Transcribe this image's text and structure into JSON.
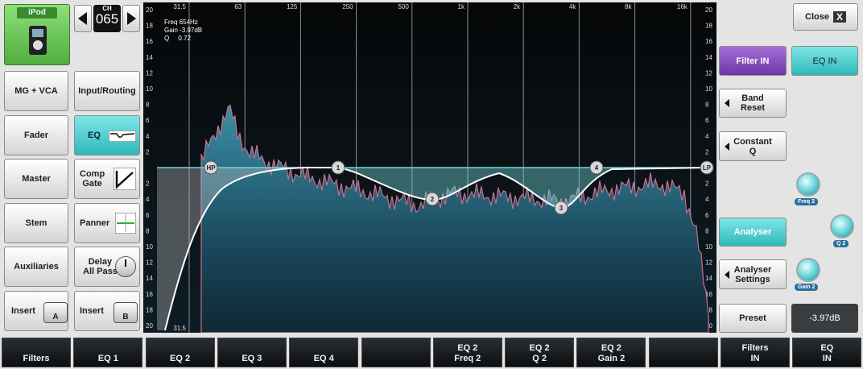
{
  "channel": {
    "source": "iPod",
    "label": "CH",
    "number": "065"
  },
  "left_buttons": [
    "MG + VCA",
    "Input/Routing",
    "Fader",
    "EQ",
    "Master",
    "Comp\nGate",
    "Stem",
    "Panner",
    "Auxiliaries",
    "Delay\nAll Pass",
    "Insert",
    "Insert"
  ],
  "insert_badges": [
    "A",
    "B"
  ],
  "graph": {
    "readout": [
      "Freq 654Hz",
      "Gain -3.97dB",
      "Q     0.72"
    ],
    "freq_labels": [
      "31.5",
      "63",
      "125",
      "250",
      "500",
      "1k",
      "2k",
      "4k",
      "8k",
      "16k"
    ],
    "db_labels_upper": [
      20,
      18,
      16,
      14,
      12,
      10,
      8,
      6,
      4,
      2
    ],
    "db_labels_lower": [
      2,
      4,
      6,
      8,
      10,
      12,
      14,
      16,
      18,
      20
    ],
    "markers": [
      "HP",
      "1",
      "2",
      "3",
      "4",
      "LP"
    ]
  },
  "right_panel": {
    "close": "Close",
    "close_icon": "X",
    "filter_in": "Filter IN",
    "eq_in": "EQ IN",
    "band_reset": "Band\nReset",
    "constant_q": "Constant\nQ",
    "analyser": "Analyser",
    "analyser_settings": "Analyser\nSettings",
    "preset": "Preset",
    "gain_value": "-3.97dB",
    "knobs": [
      "Freq 2",
      "Q 2",
      "Gain 2"
    ]
  },
  "bottom_bar": [
    "Filters",
    "EQ 1",
    "EQ 2",
    "EQ 3",
    "EQ 4",
    "EQ 2\nFreq 2",
    "EQ 2\nQ 2",
    "EQ 2\nGain 2",
    "Filters\nIN",
    "EQ\nIN"
  ]
}
